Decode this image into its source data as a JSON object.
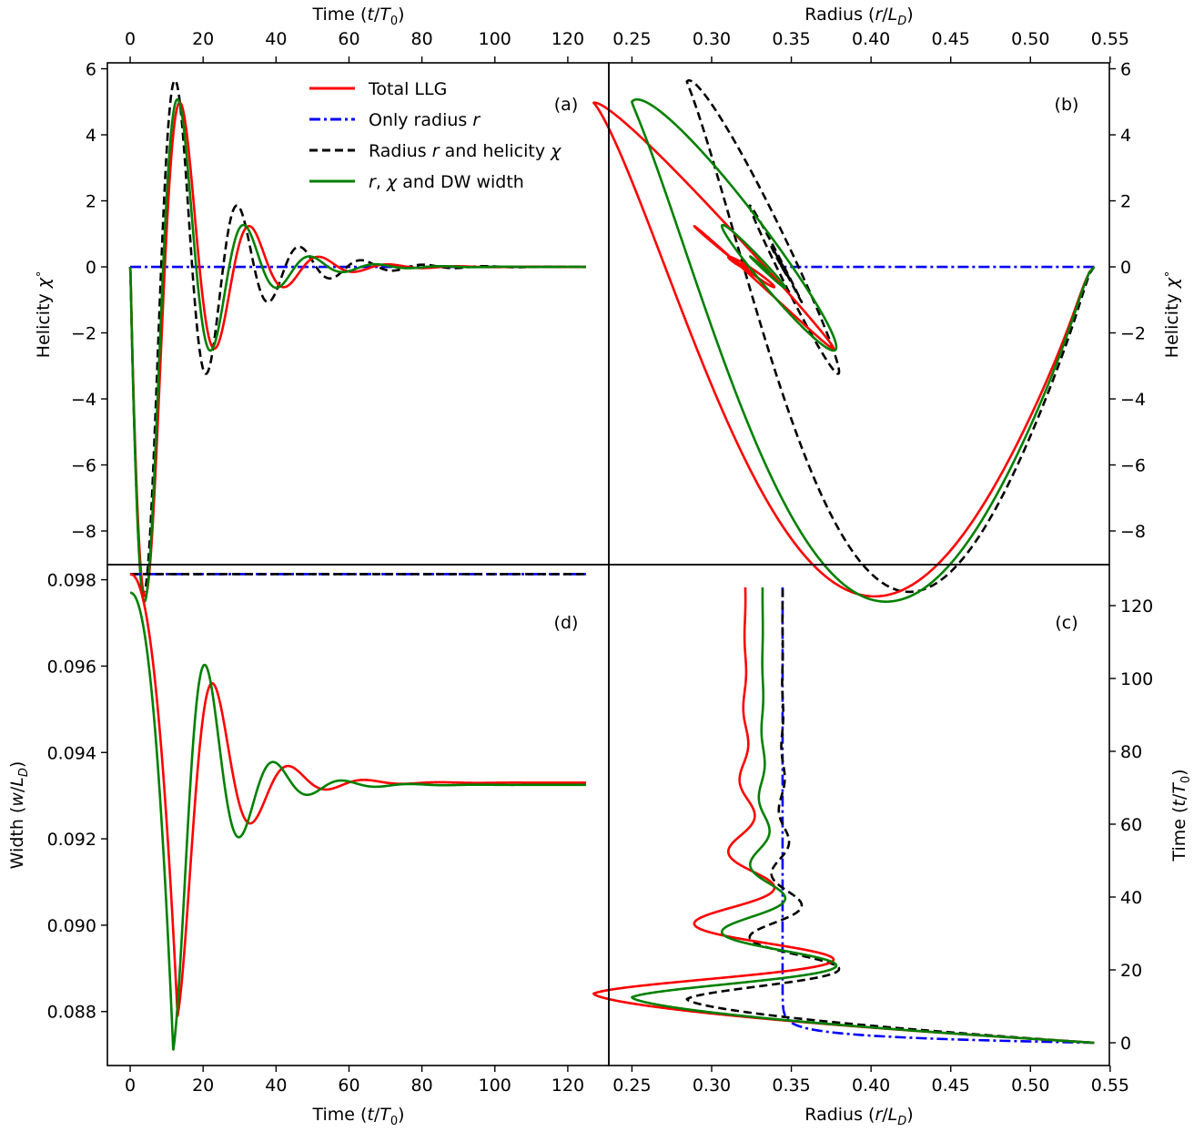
{
  "colors": {
    "total_llg": "#ff0000",
    "only_radius": "#0000ff",
    "radius_helicity": "#000000",
    "r_chi_width": "#008000"
  },
  "legend": {
    "total_llg": "Total LLG",
    "only_radius_prefix": "Only radius ",
    "only_radius_var": "r",
    "rh_prefix": "Radius ",
    "rh_var1": "r",
    "rh_mid": " and helicity ",
    "rh_var2": "χ",
    "rcw_var1": "r",
    "rcw_sep": ", ",
    "rcw_var2": "χ",
    "rcw_suffix": " and DW width"
  },
  "labels": {
    "time_axis": {
      "prefix": "Time (",
      "num": "t",
      "slash": "/",
      "den": "T",
      "sub": "0",
      "suffix": ")"
    },
    "radius_axis": {
      "prefix": "Radius (",
      "num": "r",
      "slash": "/",
      "den": "L",
      "sub": "D",
      "suffix": ")"
    },
    "helicity_axis": {
      "prefix": "Helicity ",
      "var": "χ",
      "sup": "∘"
    },
    "width_axis": {
      "prefix": "Width (",
      "num": "w",
      "slash": "/",
      "den": "L",
      "sub": "D",
      "suffix": ")"
    },
    "panel_a": "(a)",
    "panel_b": "(b)",
    "panel_c": "(c)",
    "panel_d": "(d)"
  },
  "chart_data": [
    {
      "panel": "(a)",
      "type": "line",
      "xlabel": "Time (t/T0)",
      "ylabel": "Helicity χ°",
      "xlim": [
        -6.25,
        131.25
      ],
      "ylim": [
        -9.02,
        6.18
      ],
      "xticks": [
        0,
        20,
        40,
        60,
        80,
        100,
        120
      ],
      "yticks": [
        -8,
        -6,
        -4,
        -2,
        0,
        2,
        4,
        6
      ],
      "legend_position": "upper-center",
      "series": [
        {
          "name": "Total LLG",
          "model": "helicity",
          "params": {
            "t0": 1.3,
            "A": 13.8,
            "w": 0.3306,
            "k": 0.0733,
            "gt": 0.15
          }
        },
        {
          "name": "Only radius r",
          "model": "zero"
        },
        {
          "name": "Radius r and helicity χ",
          "model": "helicity",
          "params": {
            "t0": 0.9,
            "A": 12.8,
            "w": 0.3696,
            "k": 0.0654,
            "gt": 0.12
          }
        },
        {
          "name": "r, χ and DW width",
          "model": "helicity",
          "params": {
            "t0": 1.1,
            "A": 14.0,
            "w": 0.3472,
            "k": 0.0766,
            "gt": 0.15
          }
        }
      ]
    },
    {
      "panel": "(b)",
      "type": "line",
      "xlabel": "Radius (r/LD)",
      "ylabel": "Helicity χ°",
      "xlim": [
        0.2355,
        0.5495
      ],
      "ylim": [
        -9.02,
        6.18
      ],
      "xticks": [
        0.25,
        0.3,
        0.35,
        0.4,
        0.45,
        0.5,
        0.55
      ],
      "yticks": [
        -8,
        -6,
        -4,
        -2,
        0,
        2,
        4,
        6
      ],
      "series": [
        {
          "name": "Total LLG",
          "parametric": "radius vs helicity"
        },
        {
          "name": "Only radius r",
          "parametric": "radius vs helicity"
        },
        {
          "name": "Radius r and helicity χ",
          "parametric": "radius vs helicity"
        },
        {
          "name": "r, χ and DW width",
          "parametric": "radius vs helicity"
        }
      ]
    },
    {
      "panel": "(c)",
      "type": "line",
      "xlabel": "Radius (r/LD)",
      "ylabel": "Time (t/T0)",
      "xlim": [
        0.2355,
        0.5495
      ],
      "ylim": [
        -6.25,
        131.25
      ],
      "xticks": [
        0.25,
        0.3,
        0.35,
        0.4,
        0.45,
        0.5,
        0.55
      ],
      "yticks": [
        0,
        20,
        40,
        60,
        80,
        100,
        120
      ],
      "series": [
        {
          "name": "Total LLG",
          "model": "radius",
          "params": {
            "r0": 0.54,
            "rinf": 0.321,
            "tm": 13.5,
            "v0": -0.035,
            "tau1": 4.5,
            "B": 0.095,
            "k": 0.056,
            "w": 0.318,
            "ph": 3.42
          }
        },
        {
          "name": "Only radius r",
          "model": "radius_relax",
          "params": {
            "r0": 0.54,
            "rinf": 0.3445,
            "tau": 1.55
          }
        },
        {
          "name": "Radius r and helicity χ",
          "model": "radius",
          "params": {
            "r0": 0.54,
            "rinf": 0.3445,
            "tm": 12.0,
            "v0": -0.04,
            "tau1": 4.5,
            "B": 0.06,
            "k": 0.062,
            "w": 0.36,
            "ph": 3.47
          }
        },
        {
          "name": "r, χ and DW width",
          "model": "radius",
          "params": {
            "r0": 0.54,
            "rinf": 0.332,
            "tm": 12.5,
            "v0": -0.036,
            "tau1": 4.5,
            "B": 0.082,
            "k": 0.064,
            "w": 0.34,
            "ph": 3.3
          }
        }
      ]
    },
    {
      "panel": "(d)",
      "type": "line",
      "xlabel": "Time (t/T0)",
      "ylabel": "Width (w/LD)",
      "xlim": [
        -6.25,
        131.25
      ],
      "ylim": [
        0.08675,
        0.09835
      ],
      "xticks": [
        0,
        20,
        40,
        60,
        80,
        100,
        120
      ],
      "yticks": [
        0.088,
        0.09,
        0.092,
        0.094,
        0.096,
        0.098
      ],
      "series": [
        {
          "name": "Total LLG",
          "model": "width",
          "params": {
            "wstart": 0.09813,
            "winf": 0.0933,
            "tm": 13.0,
            "wmin": 0.0879,
            "s": 3.7,
            "B": 0.0022,
            "k": 0.066,
            "w": 0.302,
            "ph": 2.99
          }
        },
        {
          "name": "Only radius r",
          "model": "const",
          "params": {
            "value": 0.09813
          }
        },
        {
          "name": "Radius r and helicity χ",
          "model": "const",
          "params": {
            "value": 0.09813
          }
        },
        {
          "name": "r, χ and DW width",
          "model": "width",
          "params": {
            "wstart": 0.0977,
            "winf": 0.09325,
            "tm": 11.8,
            "wmin": 0.0871,
            "s": 3.9,
            "B": 0.0022,
            "k": 0.068,
            "w": 0.335,
            "ph": 3.04
          }
        }
      ]
    }
  ]
}
